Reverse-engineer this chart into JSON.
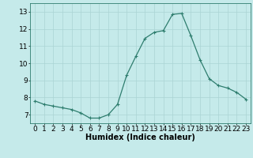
{
  "x": [
    0,
    1,
    2,
    3,
    4,
    5,
    6,
    7,
    8,
    9,
    10,
    11,
    12,
    13,
    14,
    15,
    16,
    17,
    18,
    19,
    20,
    21,
    22,
    23
  ],
  "y": [
    7.8,
    7.6,
    7.5,
    7.4,
    7.3,
    7.1,
    6.8,
    6.8,
    7.0,
    7.6,
    9.3,
    10.4,
    11.45,
    11.8,
    11.9,
    12.85,
    12.9,
    11.6,
    10.2,
    9.1,
    8.7,
    8.55,
    8.3,
    7.9
  ],
  "line_color": "#2e7d6e",
  "marker": "+",
  "marker_size": 3,
  "marker_lw": 0.8,
  "bg_color": "#c5eaea",
  "grid_color": "#aad4d4",
  "xlabel": "Humidex (Indice chaleur)",
  "xlim": [
    -0.5,
    23.5
  ],
  "ylim": [
    6.5,
    13.5
  ],
  "yticks": [
    7,
    8,
    9,
    10,
    11,
    12,
    13
  ],
  "xtick_labels": [
    "0",
    "1",
    "2",
    "3",
    "4",
    "5",
    "6",
    "7",
    "8",
    "9",
    "10",
    "11",
    "12",
    "13",
    "14",
    "15",
    "16",
    "17",
    "18",
    "19",
    "20",
    "21",
    "22",
    "23"
  ],
  "xlabel_fontsize": 7,
  "tick_fontsize": 6.5,
  "linewidth": 0.9
}
